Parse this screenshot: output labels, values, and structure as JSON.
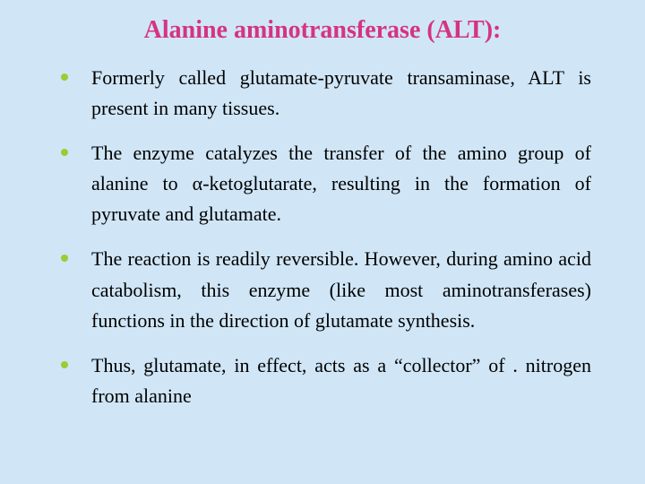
{
  "slide": {
    "title": "Alanine aminotransferase (ALT):",
    "background_color": "#d0e6f7",
    "title_color": "#d63384",
    "title_fontsize": 28,
    "body_fontsize": 22,
    "body_color": "#000000",
    "bullet_color": "#9acd32",
    "font_family": "Georgia, 'Times New Roman', serif",
    "bullets": [
      "Formerly called glutamate-pyruvate transaminase, ALT is present in many tissues.",
      "The enzyme catalyzes the transfer of the amino group of  alanine to α-ketoglutarate, resulting in the formation of pyruvate and glutamate.",
      "The reaction is readily reversible. However, during amino acid catabolism, this enzyme (like most aminotransferases) functions in the direction of glutamate synthesis.",
      "Thus, glutamate, in effect, acts as a “collector” of . nitrogen from alanine"
    ]
  }
}
